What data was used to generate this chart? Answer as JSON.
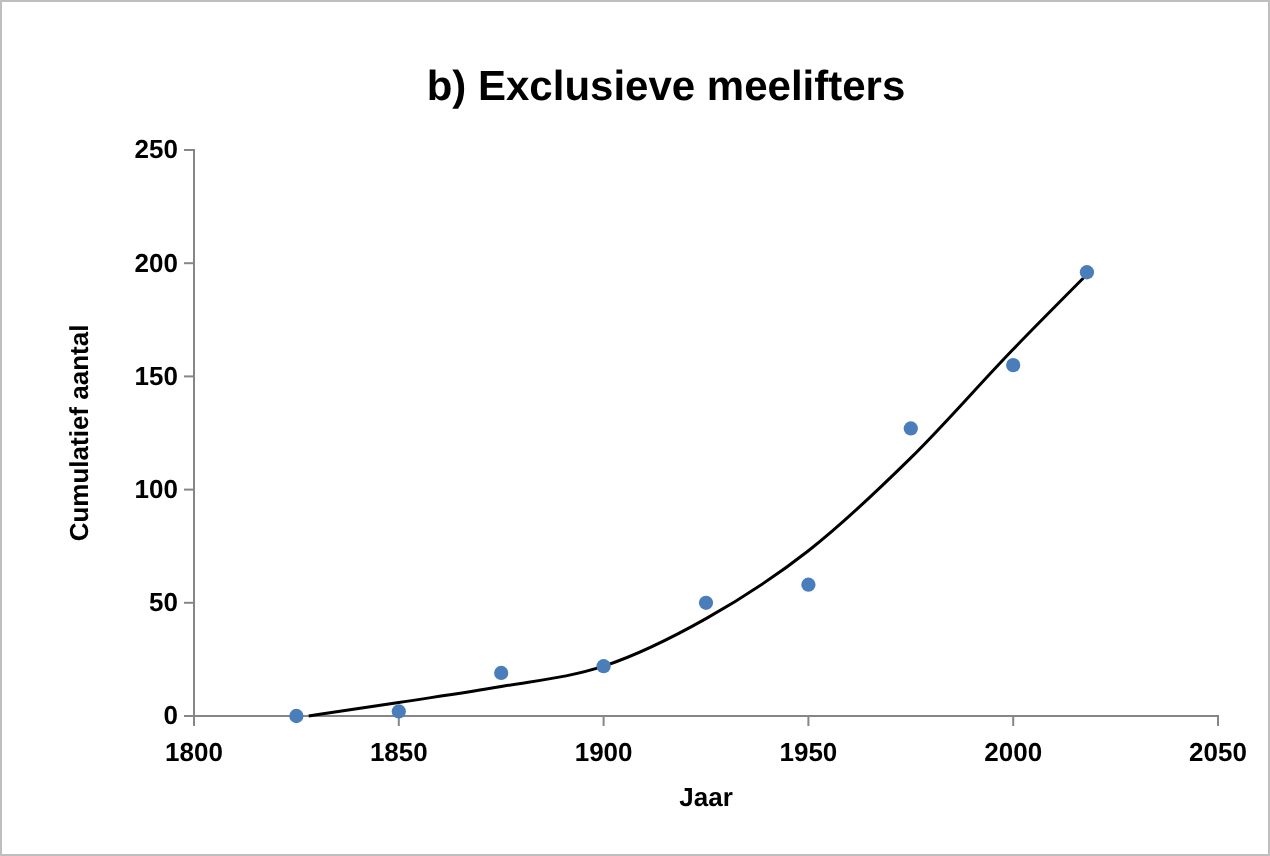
{
  "chart_data": {
    "type": "scatter",
    "title": "b) Exclusieve meelifters",
    "xlabel": "Jaar",
    "ylabel": "Cumulatief aantal",
    "xlim": [
      1800,
      2050
    ],
    "xticks": [
      1800,
      1850,
      1900,
      1950,
      2000,
      2050
    ],
    "ylim": [
      0,
      250
    ],
    "yticks": [
      0,
      50,
      100,
      150,
      200,
      250
    ],
    "grid": false,
    "series": [
      {
        "color": "#4a7ebb",
        "marker": "circle",
        "x": [
          1825,
          1850,
          1875,
          1900,
          1925,
          1950,
          1975,
          2000,
          2018
        ],
        "values": [
          0,
          2,
          19,
          22,
          50,
          58,
          127,
          155,
          196
        ]
      },
      {
        "type": "line",
        "color": "#000000",
        "marker": "none",
        "line_style": "solid",
        "x": [
          1828,
          1850,
          1875,
          1900,
          1925,
          1950,
          1975,
          2000,
          2018
        ],
        "values": [
          0,
          6,
          13,
          22,
          43,
          73,
          114,
          162,
          195
        ]
      }
    ]
  }
}
